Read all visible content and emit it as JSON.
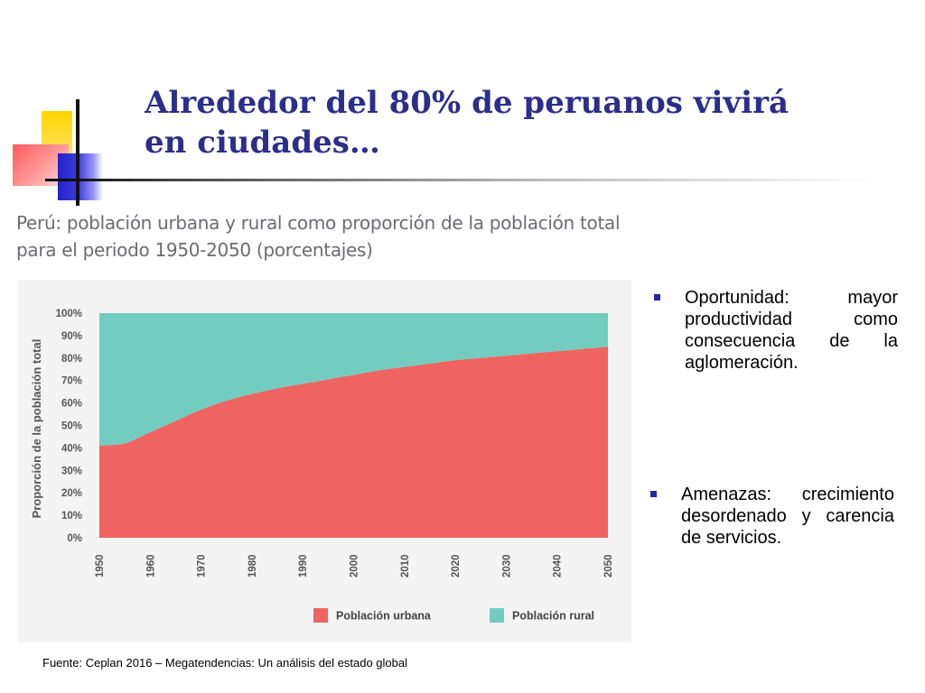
{
  "slide": {
    "title": "Alrededor del 80% de peruanos vivirá\nen ciudades…",
    "chart_caption": "Perú: población urbana y rural como proporción de la población total para el periodo 1950-2050 (porcentajes)",
    "bullets": [
      "Oportunidad: mayor productividad como consecuencia de la aglomeración.",
      "Amenazas: crecimiento desordenado y carencia de servicios."
    ],
    "source": "Fuente: Ceplan 2016 – Megatendencias: Un análisis del estado global"
  },
  "colors": {
    "title": "#2b2e8a",
    "urban": "#ef6461",
    "rural": "#72cdc0",
    "bullet_marker": "#2323a8"
  },
  "chart_data": {
    "type": "area",
    "stacked": true,
    "ylabel": "Proporción de la población total",
    "xlabel": "",
    "x": [
      1950,
      1955,
      1960,
      1965,
      1970,
      1975,
      1980,
      1985,
      1990,
      1995,
      2000,
      2005,
      2010,
      2015,
      2020,
      2025,
      2030,
      2035,
      2040,
      2045,
      2050
    ],
    "xticks": [
      "1950",
      "1960",
      "1970",
      "1980",
      "1990",
      "2000",
      "2010",
      "2020",
      "2030",
      "2040",
      "2050"
    ],
    "yticks": [
      "0%",
      "10%",
      "20%",
      "30%",
      "40%",
      "50%",
      "60%",
      "70%",
      "80%",
      "90%",
      "100%"
    ],
    "ylim": [
      0,
      100
    ],
    "series": [
      {
        "name": "Población urbana",
        "color": "#ef6461",
        "values": [
          41,
          42,
          47,
          52,
          57,
          61,
          64,
          66.5,
          68.5,
          70.5,
          72.5,
          74.5,
          76,
          77.5,
          79,
          80,
          81,
          82,
          83,
          84,
          85
        ]
      },
      {
        "name": "Población rural",
        "color": "#72cdc0",
        "values": [
          59,
          58,
          53,
          48,
          43,
          39,
          36,
          33.5,
          31.5,
          29.5,
          27.5,
          25.5,
          24,
          22.5,
          21,
          20,
          19,
          18,
          17,
          16,
          15
        ]
      }
    ],
    "legend": [
      "Población urbana",
      "Población rural"
    ],
    "legend_position": "bottom",
    "grid": false
  }
}
